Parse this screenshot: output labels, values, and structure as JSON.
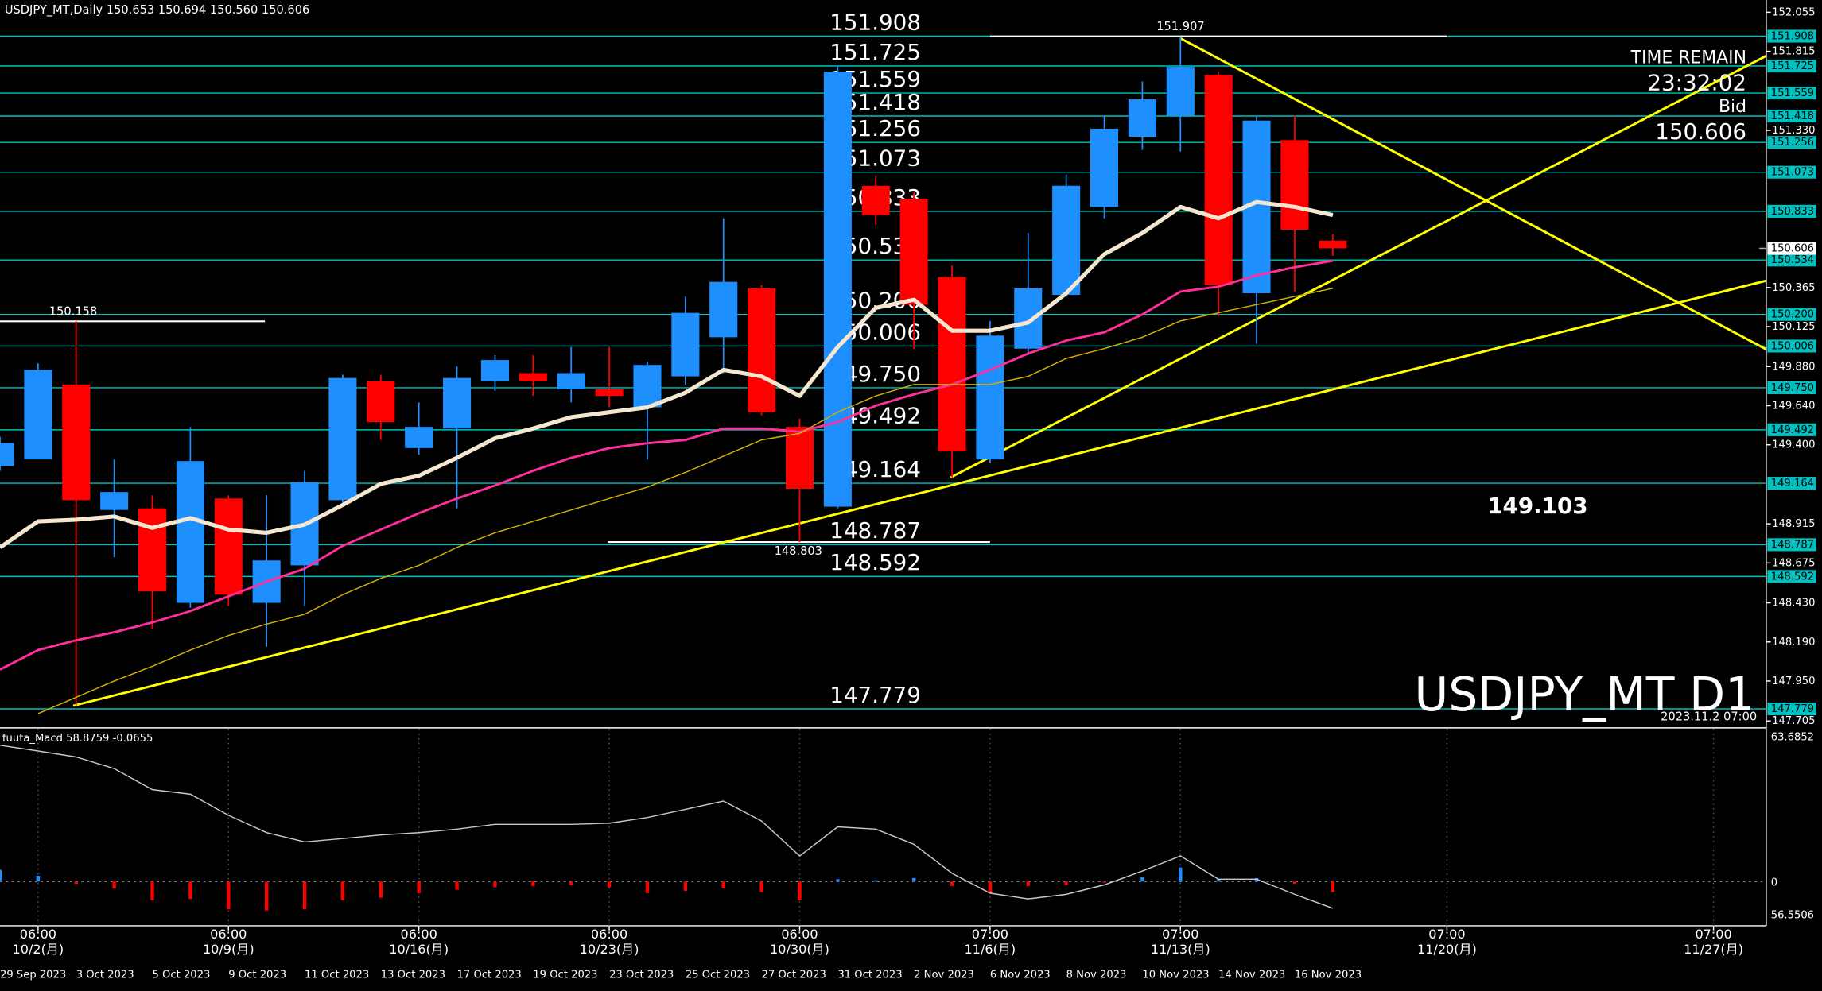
{
  "chart_data": {
    "type": "candlestick",
    "title": "USDJPY_MT,Daily  150.653 150.694 150.560 150.606",
    "categories": [
      "29 Sep 2023",
      null,
      "3 Oct 2023",
      null,
      "5 Oct 2023",
      null,
      "9 Oct 2023",
      null,
      "11 Oct 2023",
      null,
      "13 Oct 2023",
      null,
      "17 Oct 2023",
      null,
      "19 Oct 2023",
      null,
      "23 Oct 2023",
      null,
      "25 Oct 2023",
      null,
      "27 Oct 2023",
      null,
      "31 Oct 2023",
      null,
      "2 Nov 2023",
      null,
      "6 Nov 2023",
      null,
      "8 Nov 2023",
      null,
      "10 Nov 2023",
      null,
      "14 Nov 2023",
      null,
      "16 Nov 2023",
      null
    ],
    "open": [
      149.27,
      149.31,
      149.77,
      149.0,
      149.01,
      148.43,
      149.07,
      148.43,
      148.66,
      149.06,
      149.79,
      149.38,
      149.5,
      149.79,
      149.84,
      149.74,
      149.74,
      149.63,
      149.82,
      150.06,
      150.36,
      149.51,
      149.02,
      150.99,
      150.91,
      150.43,
      149.31,
      149.99,
      150.32,
      150.86,
      151.29,
      151.42,
      151.67,
      150.33,
      151.27,
      150.653
    ],
    "high": [
      149.45,
      149.9,
      150.158,
      149.31,
      149.09,
      149.51,
      149.09,
      149.09,
      149.24,
      149.83,
      149.83,
      149.66,
      149.88,
      149.95,
      149.95,
      150.0,
      150.0,
      149.91,
      150.31,
      150.79,
      150.38,
      149.56,
      151.72,
      151.05,
      150.95,
      150.5,
      150.16,
      150.7,
      151.06,
      151.42,
      151.63,
      151.907,
      151.69,
      151.42,
      151.42,
      150.694
    ],
    "low": [
      149.24,
      149.31,
      147.8,
      148.71,
      148.27,
      148.4,
      148.41,
      148.16,
      148.41,
      149.02,
      149.43,
      149.34,
      149.01,
      149.73,
      149.7,
      149.66,
      149.63,
      149.31,
      149.77,
      149.84,
      149.58,
      148.803,
      149.01,
      150.75,
      149.99,
      149.2,
      149.29,
      149.95,
      150.31,
      150.79,
      151.21,
      151.2,
      150.19,
      150.02,
      150.34,
      150.56
    ],
    "close": [
      149.41,
      149.86,
      149.06,
      149.11,
      148.5,
      149.3,
      148.48,
      148.69,
      149.17,
      149.81,
      149.54,
      149.51,
      149.81,
      149.92,
      149.79,
      149.84,
      149.7,
      149.89,
      150.21,
      150.4,
      149.6,
      149.13,
      151.69,
      150.81,
      150.26,
      149.36,
      150.07,
      150.36,
      150.99,
      151.34,
      151.52,
      151.72,
      150.38,
      151.39,
      150.72,
      150.606
    ],
    "up_color": "#1e8fff",
    "down_color": "#ff0000",
    "lines": [
      {
        "color": "#f5e6d0",
        "width": 3.5,
        "values": [
          148.77,
          148.93,
          148.94,
          148.96,
          148.89,
          148.95,
          148.88,
          148.86,
          148.91,
          149.03,
          149.16,
          149.21,
          149.32,
          149.44,
          149.5,
          149.57,
          149.6,
          149.63,
          149.72,
          149.86,
          149.82,
          149.7,
          150.0,
          150.24,
          150.29,
          150.1,
          150.1,
          150.15,
          150.33,
          150.57,
          150.7,
          150.86,
          150.79,
          150.89,
          150.86,
          150.81
        ]
      },
      {
        "color": "#ff2f9a",
        "width": 2,
        "values": [
          148.02,
          148.14,
          148.2,
          148.25,
          148.31,
          148.38,
          148.47,
          148.56,
          148.64,
          148.78,
          148.88,
          148.98,
          149.07,
          149.15,
          149.24,
          149.32,
          149.38,
          149.41,
          149.43,
          149.5,
          149.5,
          149.48,
          149.54,
          149.64,
          149.71,
          149.77,
          149.86,
          149.96,
          150.04,
          150.09,
          150.2,
          150.34,
          150.37,
          150.44,
          150.49,
          150.53
        ]
      },
      {
        "color": "#d4b000",
        "width": 1,
        "values": [
          null,
          147.75,
          147.85,
          147.95,
          148.04,
          148.14,
          148.23,
          148.3,
          148.36,
          148.48,
          148.58,
          148.66,
          148.77,
          148.86,
          148.93,
          149.0,
          149.07,
          149.14,
          149.23,
          149.33,
          149.43,
          149.47,
          149.6,
          149.7,
          149.77,
          149.77,
          149.77,
          149.82,
          149.93,
          149.99,
          150.06,
          150.16,
          150.21,
          150.26,
          150.31,
          150.36
        ]
      }
    ],
    "ylim": [
      147.67,
      152.13
    ],
    "yticks": [
      152.055,
      151.815,
      {
        "value": 151.33,
        "label": "151.330"
      },
      150.365,
      150.125,
      {
        "value": 149.88,
        "label": "149.880"
      },
      {
        "value": 149.64,
        "label": "149.640"
      },
      {
        "value": 149.4,
        "label": "149.400"
      },
      148.915,
      148.675,
      {
        "value": 148.43,
        "label": "148.430"
      },
      {
        "value": 148.19,
        "label": "148.190"
      },
      {
        "value": 147.95,
        "label": "147.950"
      },
      147.705
    ],
    "levels": [
      151.908,
      151.725,
      151.559,
      151.418,
      151.256,
      151.073,
      150.833,
      150.534,
      {
        "value": 150.2,
        "label": "150.200"
      },
      150.006,
      {
        "value": 149.75,
        "label": "149.750"
      },
      149.492,
      149.164,
      148.787,
      148.592,
      147.779
    ],
    "level_color": "#00c0c0",
    "bid": 150.606,
    "high_marker": 151.907,
    "left_marker": 150.158,
    "low_marker": 148.803,
    "projection": 149.103,
    "time_remain_label": "TIME REMAIN",
    "time_remain": "23:32:02",
    "bid_label": "Bid",
    "watermark": "USDJPY_MT D1",
    "cursor_time": "2023.11.2 07:00",
    "time_labels": [
      {
        "time": "06:00",
        "date": "10/2(月)"
      },
      {
        "time": "06:00",
        "date": "10/9(月)"
      },
      {
        "time": "06:00",
        "date": "10/16(月)"
      },
      {
        "time": "06:00",
        "date": "10/23(月)"
      },
      {
        "time": "06:00",
        "date": "10/30(月)"
      },
      {
        "time": "07:00",
        "date": "11/6(月)"
      },
      {
        "time": "07:00",
        "date": "11/13(月)"
      },
      {
        "time": "07:00",
        "date": "11/20(月)"
      },
      {
        "time": "07:00",
        "date": "11/27(月)"
      }
    ],
    "macd": {
      "label": "fuuta_Macd 58.8759 -0.0655",
      "max_label": "63.6852",
      "zero_label": "0",
      "min_label": "56.5506",
      "line_color": "#c8c8c8",
      "line": [
        59.6,
        57.1,
        54.5,
        49.4,
        40.2,
        38.2,
        29.0,
        21.4,
        17.3,
        18.8,
        20.4,
        21.4,
        22.9,
        25.0,
        25.0,
        25.0,
        25.5,
        28.0,
        31.6,
        35.2,
        26.5,
        11.2,
        23.9,
        22.9,
        16.3,
        3.6,
        -5.1,
        -7.6,
        -5.6,
        -1.5,
        4.6,
        11.2,
        1.0,
        1.0,
        -5.6,
        -11.7
      ],
      "histogram": [
        5.1,
        2.5,
        -1.0,
        -3.0,
        -8.2,
        -7.6,
        -12.2,
        -12.7,
        -12.2,
        -8.2,
        -7.1,
        -5.1,
        -3.6,
        -2.5,
        -2.0,
        -1.5,
        -2.5,
        -5.1,
        -4.1,
        -3.0,
        -4.6,
        -8.2,
        1.0,
        0.5,
        1.5,
        -2.0,
        -5.1,
        -2.0,
        -1.5,
        -0.5,
        2.0,
        6.1,
        1.0,
        1.5,
        -1.0,
        -4.6
      ]
    }
  }
}
